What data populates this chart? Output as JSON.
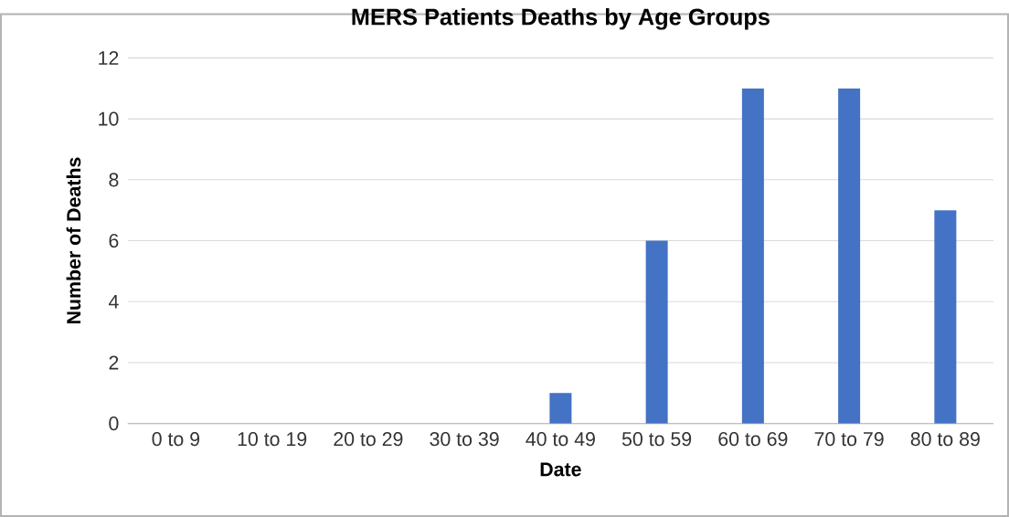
{
  "chart_data": {
    "type": "bar",
    "title": "MERS Patients Deaths by Age Groups",
    "xlabel": "Date",
    "ylabel": "Number of Deaths",
    "categories": [
      "0 to 9",
      "10 to 19",
      "20 to 29",
      "30 to 39",
      "40 to 49",
      "50 to 59",
      "60 to 69",
      "70 to 79",
      "80 to 89"
    ],
    "values": [
      0,
      0,
      0,
      0,
      1,
      6,
      11,
      11,
      7
    ],
    "color": "#4472c4",
    "ylim": [
      0,
      12
    ],
    "yticks": [
      0,
      2,
      4,
      6,
      8,
      10,
      12
    ],
    "grid": "y"
  }
}
